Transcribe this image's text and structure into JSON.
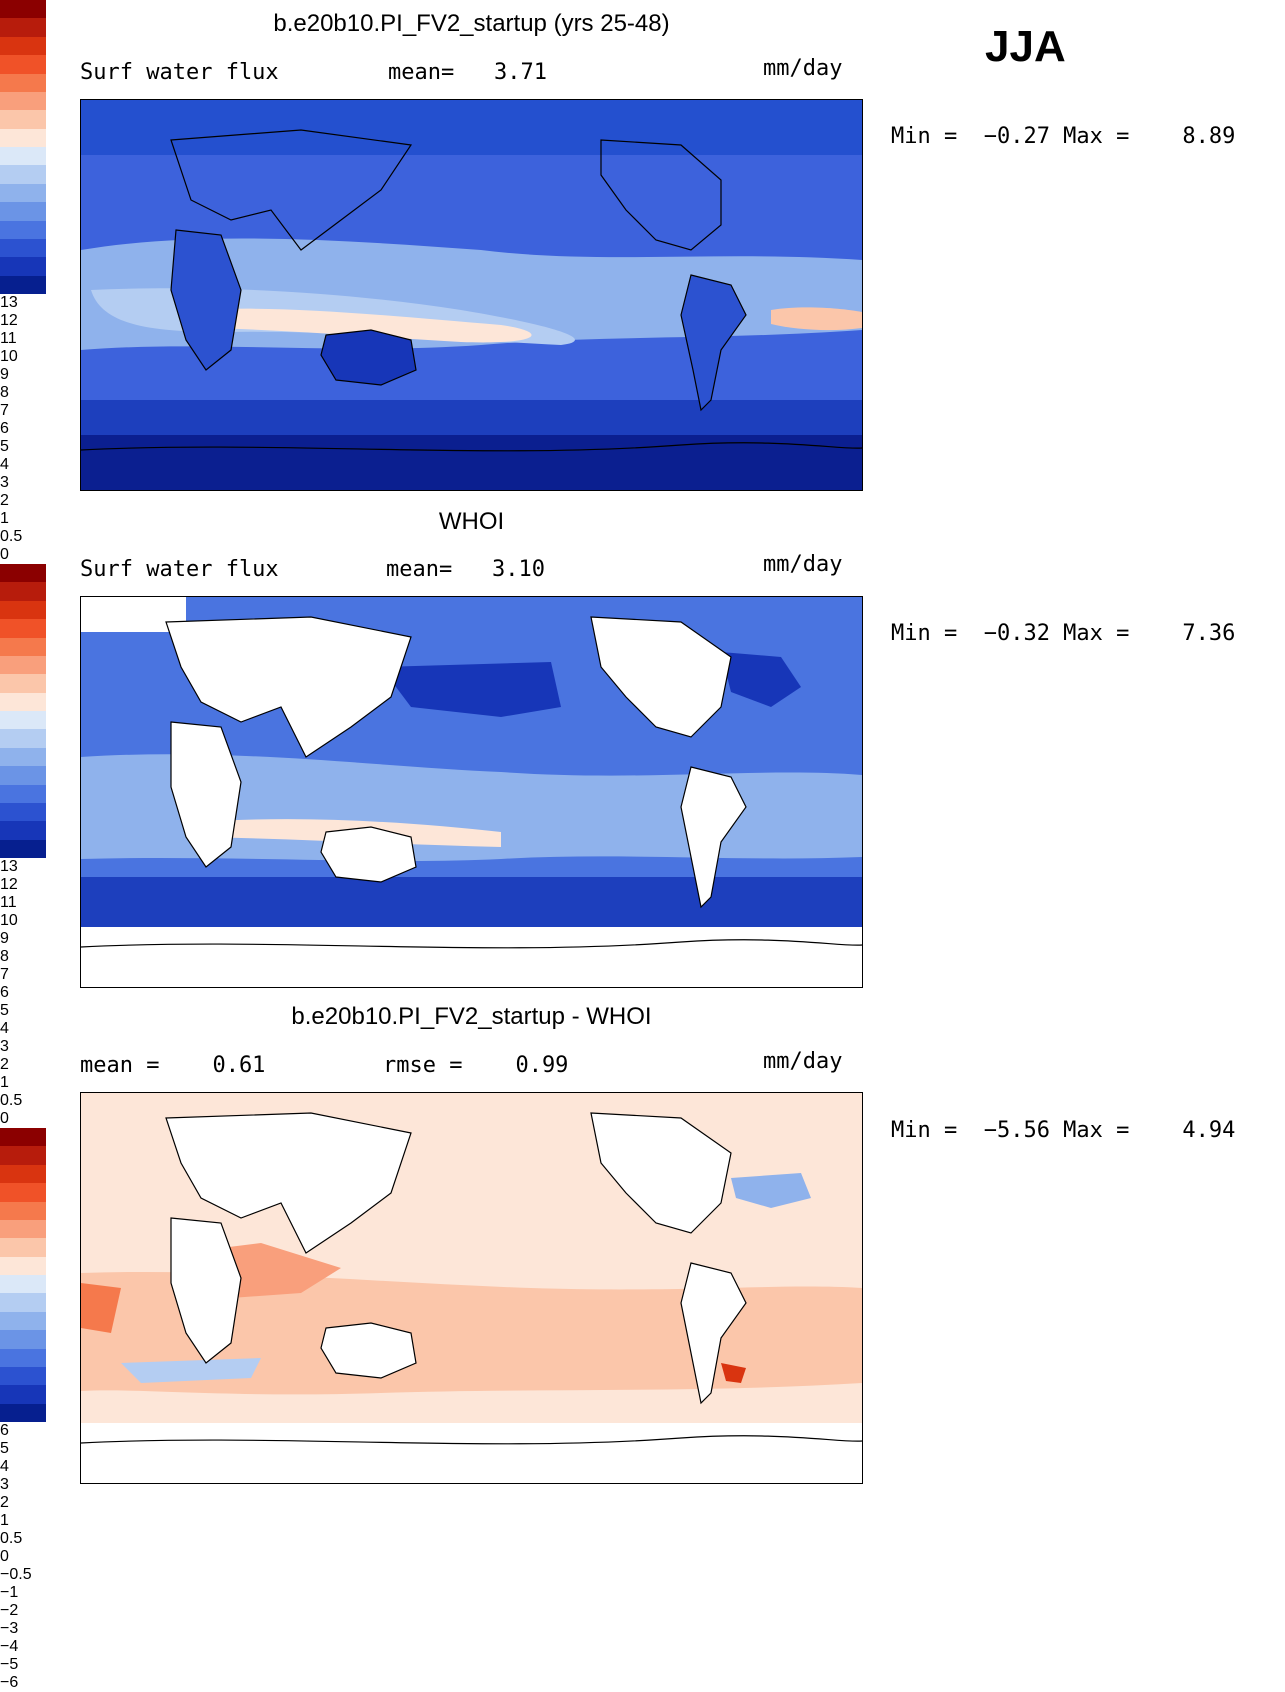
{
  "season": "JJA",
  "units": "mm/day",
  "panels": [
    {
      "id": "model",
      "title": "b.e20b10.PI_FV2_startup (yrs 25-48)",
      "left_stat": "Surf water flux",
      "center_stat": "mean=   3.71",
      "units": "mm/day",
      "minmax": "Min =  −0.27 Max =    8.89",
      "colorbar": {
        "labels": [
          "13",
          "12",
          "11",
          "10",
          "9",
          "8",
          "7",
          "6",
          "5",
          "4",
          "3",
          "2",
          "1",
          "0.5",
          "0"
        ],
        "colors": [
          "#8b0000",
          "#b71c0c",
          "#d93410",
          "#f05228",
          "#f5794c",
          "#f99f7c",
          "#fbc6aa",
          "#fde6d8",
          "#dbe8f8",
          "#b4cdf2",
          "#8fb2ec",
          "#6b94e6",
          "#4a74e0",
          "#2c52d0",
          "#1736b8",
          "#061f8f"
        ]
      }
    },
    {
      "id": "obs",
      "title": "WHOI",
      "left_stat": "Surf water flux",
      "center_stat": "mean=   3.10",
      "units": "mm/day",
      "minmax": "Min =  −0.32 Max =    7.36",
      "colorbar": {
        "labels": [
          "13",
          "12",
          "11",
          "10",
          "9",
          "8",
          "7",
          "6",
          "5",
          "4",
          "3",
          "2",
          "1",
          "0.5",
          "0"
        ],
        "colors": [
          "#8b0000",
          "#b71c0c",
          "#d93410",
          "#f05228",
          "#f5794c",
          "#f99f7c",
          "#fbc6aa",
          "#fde6d8",
          "#dbe8f8",
          "#b4cdf2",
          "#8fb2ec",
          "#6b94e6",
          "#4a74e0",
          "#2c52d0",
          "#1736b8",
          "#061f8f"
        ]
      }
    },
    {
      "id": "diff",
      "title": "b.e20b10.PI_FV2_startup - WHOI",
      "left_stat": "mean =    0.61",
      "center_stat": "rmse =    0.99",
      "units": "mm/day",
      "minmax": "Min =  −5.56 Max =    4.94",
      "colorbar": {
        "labels": [
          "6",
          "5",
          "4",
          "3",
          "2",
          "1",
          "0.5",
          "0",
          "−0.5",
          "−1",
          "−2",
          "−3",
          "−4",
          "−5",
          "−6"
        ],
        "colors": [
          "#8b0000",
          "#b71c0c",
          "#d93410",
          "#f05228",
          "#f5794c",
          "#f99f7c",
          "#fbc6aa",
          "#fde6d8",
          "#dbe8f8",
          "#b4cdf2",
          "#8fb2ec",
          "#6b94e6",
          "#4a74e0",
          "#2c52d0",
          "#1736b8",
          "#061f8f"
        ]
      }
    }
  ]
}
